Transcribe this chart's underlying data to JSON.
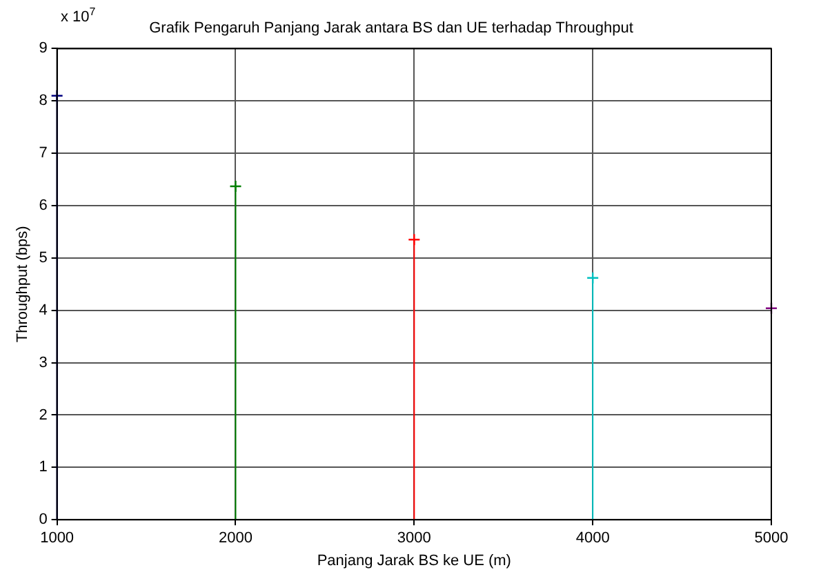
{
  "chart_data": {
    "type": "lollipop",
    "title": "Grafik Pengaruh Panjang Jarak antara BS dan UE terhadap Throughput",
    "xlabel": "Panjang Jarak BS ke UE (m)",
    "ylabel": "Throughput (bps)",
    "annotations": [
      "x 10$^{7}$"
    ],
    "series": [
      {
        "color": "#000080",
        "x": [
          1000
        ],
        "values": [
          8.1
        ]
      },
      {
        "color": "#008000",
        "x": [
          2000
        ],
        "values": [
          6.37
        ]
      },
      {
        "color": "#ff0000",
        "x": [
          3000
        ],
        "values": [
          5.35
        ]
      },
      {
        "color": "#00bfbf",
        "x": [
          4000
        ],
        "values": [
          4.62
        ]
      },
      {
        "color": "#800080",
        "x": [
          5000
        ],
        "values": [
          4.04
        ]
      }
    ],
    "xlim": [
      1000,
      5000
    ],
    "xticks": [
      1000,
      2000,
      3000,
      4000,
      5000
    ],
    "ylim": [
      0,
      9
    ],
    "yticks": [
      0,
      1,
      2,
      3,
      4,
      5,
      6,
      7,
      8,
      9
    ],
    "grid": true,
    "legend": false,
    "marker": "cross",
    "line_style": "solid"
  }
}
